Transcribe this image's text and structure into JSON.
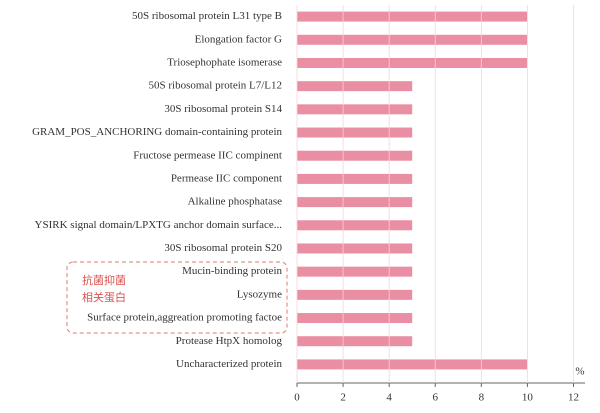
{
  "chart_data": {
    "type": "barh",
    "categories": [
      "50S ribosomal protein L31 type B",
      "Elongation factor G",
      "Triosephophate isomerase",
      "50S ribosomal protein L7/L12",
      "30S ribosomal protein S14",
      "GRAM_POS_ANCHORING domain-containing protein",
      "Fructose permease IIC compinent",
      "Permease IIC component",
      "Alkaline phosphatase",
      "YSIRK signal domain/LPXTG anchor domain surface...",
      "30S ribosomal protein S20",
      "Mucin-binding protein",
      "Lysozyme",
      "Surface protein,aggreation promoting factoe",
      "Protease HtpX homolog",
      "Uncharacterized protein"
    ],
    "values": [
      10,
      10,
      10,
      5,
      5,
      5,
      5,
      5,
      5,
      5,
      5,
      5,
      5,
      5,
      5,
      10
    ],
    "color": "#ea8ea3",
    "xlim": [
      0,
      12.5
    ],
    "xticks": [
      0,
      2,
      4,
      6,
      8,
      10,
      12
    ],
    "grid": true,
    "x_unit": "%",
    "annotation": [
      "抗菌抑菌",
      "相关蛋白"
    ]
  }
}
